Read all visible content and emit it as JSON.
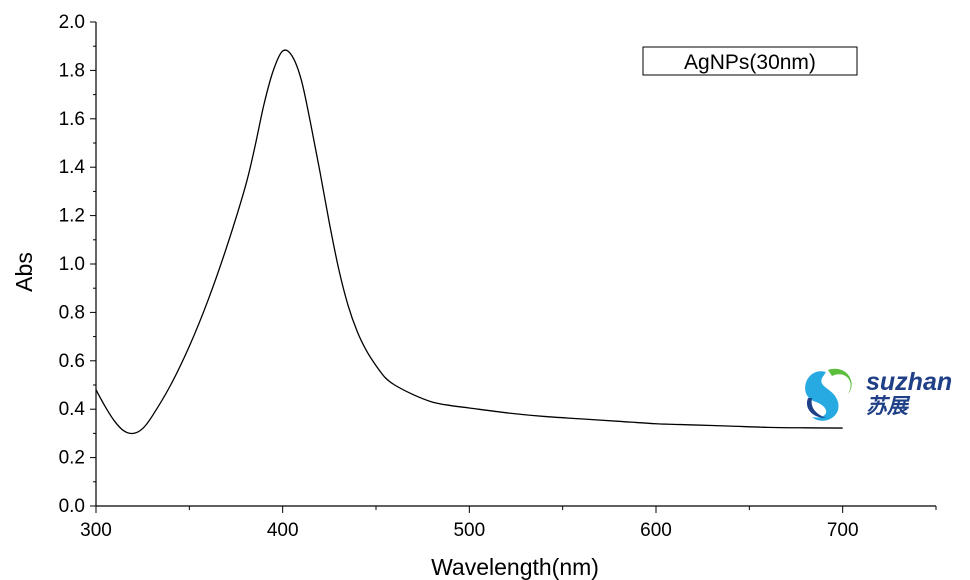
{
  "chart_data": {
    "type": "line",
    "title": "",
    "xlabel": "Wavelength(nm)",
    "ylabel": "Abs",
    "xlim": [
      300,
      750
    ],
    "ylim": [
      0.0,
      2.0
    ],
    "x_ticks": [
      300,
      400,
      500,
      600,
      700
    ],
    "x_tick_labels": [
      "300",
      "400",
      "500",
      "600",
      "700"
    ],
    "y_ticks": [
      0.0,
      0.2,
      0.4,
      0.6,
      0.8,
      1.0,
      1.2,
      1.4,
      1.6,
      1.8,
      2.0
    ],
    "y_tick_labels": [
      "0.0",
      "0.2",
      "0.4",
      "0.6",
      "0.8",
      "1.0",
      "1.2",
      "1.4",
      "1.6",
      "1.8",
      "2.0"
    ],
    "grid": false,
    "legend_position": "top-right",
    "line_color": "#000000",
    "series": [
      {
        "name": "AgNPs(30nm)",
        "x": [
          300,
          305,
          310,
          315,
          320,
          325,
          330,
          340,
          350,
          360,
          370,
          380,
          385,
          390,
          395,
          400,
          405,
          410,
          415,
          420,
          425,
          430,
          435,
          440,
          445,
          450,
          455,
          460,
          470,
          480,
          490,
          500,
          520,
          540,
          560,
          580,
          600,
          620,
          640,
          660,
          680,
          700
        ],
        "y": [
          0.48,
          0.41,
          0.35,
          0.31,
          0.3,
          0.32,
          0.37,
          0.5,
          0.66,
          0.85,
          1.07,
          1.32,
          1.48,
          1.66,
          1.8,
          1.88,
          1.86,
          1.76,
          1.58,
          1.38,
          1.17,
          0.98,
          0.83,
          0.72,
          0.64,
          0.58,
          0.53,
          0.5,
          0.46,
          0.43,
          0.415,
          0.405,
          0.385,
          0.37,
          0.36,
          0.35,
          0.34,
          0.335,
          0.33,
          0.325,
          0.323,
          0.322
        ]
      }
    ]
  },
  "logo": {
    "latin": "suzhan",
    "cjk": "苏展",
    "colors": [
      "#1f3f86",
      "#27a9e1",
      "#5bbf3c"
    ]
  }
}
